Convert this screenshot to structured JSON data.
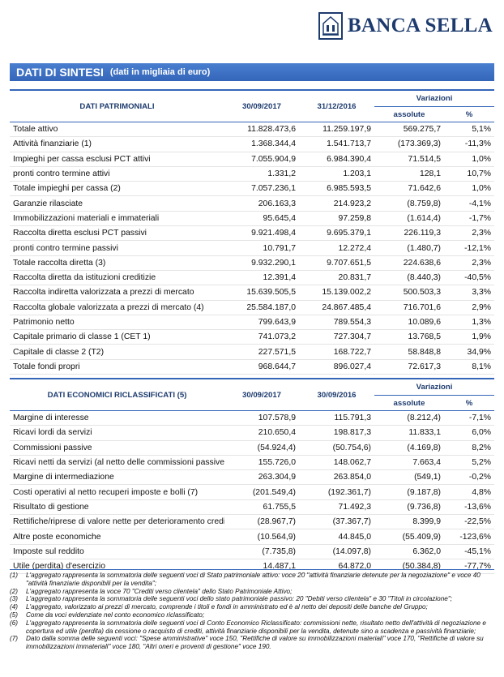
{
  "logo": "BANCA SELLA",
  "title": "DATI DI SINTESI",
  "subtitle": "(dati in migliaia di euro)",
  "table1": {
    "header": [
      "DATI PATRIMONIALI",
      "30/09/2017",
      "31/12/2016"
    ],
    "variations": "Variazioni",
    "sub": [
      "assolute",
      "%"
    ],
    "rows": [
      [
        "Totale attivo",
        "11.828.473,6",
        "11.259.197,9",
        "569.275,7",
        "5,1%"
      ],
      [
        "Attività finanziarie (1)",
        "1.368.344,4",
        "1.541.713,7",
        "(173.369,3)",
        "-11,3%"
      ],
      [
        "Impieghi per cassa esclusi PCT attivi",
        "7.055.904,9",
        "6.984.390,4",
        "71.514,5",
        "1,0%"
      ],
      [
        "pronti contro termine attivi",
        "1.331,2",
        "1.203,1",
        "128,1",
        "10,7%"
      ],
      [
        "Totale impieghi per cassa (2)",
        "7.057.236,1",
        "6.985.593,5",
        "71.642,6",
        "1,0%"
      ],
      [
        "Garanzie rilasciate",
        "206.163,3",
        "214.923,2",
        "(8.759,8)",
        "-4,1%"
      ],
      [
        "Immobilizzazioni materiali e immateriali",
        "95.645,4",
        "97.259,8",
        "(1.614,4)",
        "-1,7%"
      ],
      [
        "Raccolta diretta esclusi PCT passivi",
        "9.921.498,4",
        "9.695.379,1",
        "226.119,3",
        "2,3%"
      ],
      [
        "pronti contro termine passivi",
        "10.791,7",
        "12.272,4",
        "(1.480,7)",
        "-12,1%"
      ],
      [
        "Totale raccolta diretta (3)",
        "9.932.290,1",
        "9.707.651,5",
        "224.638,6",
        "2,3%"
      ],
      [
        "Raccolta diretta da istituzioni creditizie",
        "12.391,4",
        "20.831,7",
        "(8.440,3)",
        "-40,5%"
      ],
      [
        "Raccolta indiretta valorizzata a prezzi di mercato",
        "15.639.505,5",
        "15.139.002,2",
        "500.503,3",
        "3,3%"
      ],
      [
        "Raccolta globale valorizzata a prezzi di mercato (4)",
        "25.584.187,0",
        "24.867.485,4",
        "716.701,6",
        "2,9%"
      ],
      [
        "Patrimonio netto",
        "799.643,9",
        "789.554,3",
        "10.089,6",
        "1,3%"
      ],
      [
        "Capitale primario di classe 1 (CET 1)",
        "741.073,2",
        "727.304,7",
        "13.768,5",
        "1,9%"
      ],
      [
        "Capitale di classe 2 (T2)",
        "227.571,5",
        "168.722,7",
        "58.848,8",
        "34,9%"
      ],
      [
        "Totale fondi propri",
        "968.644,7",
        "896.027,4",
        "72.617,3",
        "8,1%"
      ]
    ]
  },
  "table2": {
    "header": [
      "DATI ECONOMICI RICLASSIFICATI (5)",
      "30/09/2017",
      "30/09/2016"
    ],
    "variations": "Variazioni",
    "sub": [
      "assolute",
      "%"
    ],
    "rows": [
      [
        "Margine di interesse",
        "107.578,9",
        "115.791,3",
        "(8.212,4)",
        "-7,1%"
      ],
      [
        "Ricavi lordi da servizi",
        "210.650,4",
        "198.817,3",
        "11.833,1",
        "6,0%"
      ],
      [
        "Commissioni passive",
        "(54.924,4)",
        "(50.754,6)",
        "(4.169,8)",
        "8,2%"
      ],
      [
        "Ricavi netti da servizi (al netto delle commissioni passive) (6)",
        "155.726,0",
        "148.062,7",
        "7.663,4",
        "5,2%"
      ],
      [
        "Margine di intermediazione",
        "263.304,9",
        "263.854,0",
        "(549,1)",
        "-0,2%"
      ],
      [
        "Costi operativi al netto recuperi imposte e bolli (7)",
        "(201.549,4)",
        "(192.361,7)",
        "(9.187,8)",
        "4,8%"
      ],
      [
        "Risultato di gestione",
        "61.755,5",
        "71.492,3",
        "(9.736,8)",
        "-13,6%"
      ],
      [
        "Rettifiche/riprese di valore nette per deterioramento crediti",
        "(28.967,7)",
        "(37.367,7)",
        "8.399,9",
        "-22,5%"
      ],
      [
        "Altre poste economiche",
        "(10.564,9)",
        "44.845,0",
        "(55.409,9)",
        "-123,6%"
      ],
      [
        "Imposte sul reddito",
        "(7.735,8)",
        "(14.097,8)",
        "6.362,0",
        "-45,1%"
      ],
      [
        "Utile (perdita) d'esercizio",
        "14.487,1",
        "64.872,0",
        "(50.384,8)",
        "-77,7%"
      ]
    ]
  },
  "notes": [
    [
      "(1)",
      "L'aggregato rappresenta la sommatoria delle seguenti voci di Stato patrimoniale attivo: voce 20 \"attività finanziarie detenute per la negoziazione\" e voce 40 \"attività finanziarie disponibili per la vendita\";"
    ],
    [
      "(2)",
      "L'aggregato rappresenta la voce 70 \"Crediti verso clientela\" dello Stato Patrimoniale Attivo;"
    ],
    [
      "(3)",
      "L'aggregato rappresenta la sommatoria delle seguenti voci dello stato patrimoniale passivo: 20 \"Debiti verso clientela\" e 30 \"Titoli in circolazione\";"
    ],
    [
      "(4)",
      "L'aggregato, valorizzato ai prezzi di mercato, comprende i titoli e fondi in amministrato ed è al netto dei depositi delle banche del Gruppo;"
    ],
    [
      "(5)",
      "Come da voci evidenziate nel conto economico riclassificato;"
    ],
    [
      "(6)",
      "L'aggregato rappresenta la sommatoria delle seguenti voci di Conto Economico Riclassificato: commissioni nette, risultato netto dell'attività di negoziazione e copertura ed utile (perdita) da cessione o racquisto di crediti, attività finanziarie disponibili per la vendita, detenute sino a scadenza e passività finanziarie;"
    ],
    [
      "(7)",
      "Dato dalla somma delle seguenti voci: \"Spese amministrative\" voce 150, \"Rettifiche di valore su immobilizzazioni materiali\" voce 170, \"Rettifiche di valore su immobilizzazioni immateriali\" voce 180, \"Altri oneri e proventi di gestione\" voce 190."
    ]
  ]
}
